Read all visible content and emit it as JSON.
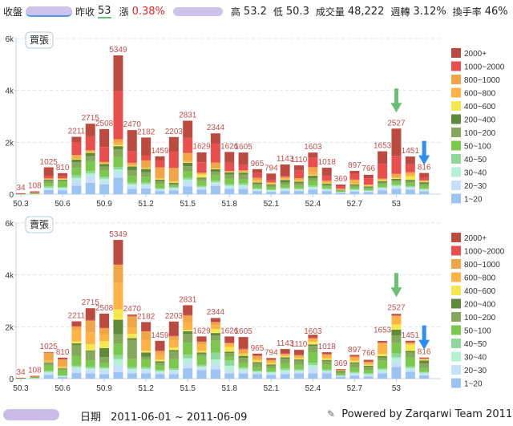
{
  "header": {
    "close_label": "收盤",
    "prev_close_label": "昨收",
    "prev_close": "53",
    "change_label": "漲",
    "change_pct": "0.38%",
    "high_label": "高",
    "high": "53.2",
    "low_label": "低",
    "low": "50.3",
    "volume_label": "成交量",
    "volume": "48,222",
    "weekly_turnover_label": "週轉",
    "weekly_turnover": "3.12%",
    "turnover_rate_label": "換手率",
    "turnover_rate": "46%"
  },
  "footer": {
    "date_label": "日期",
    "date_range": "2011-06-01 ~ 2011-06-09",
    "powered_by": "Powered by Zarqarwi Team 2011"
  },
  "colors": {
    "label_red": "#c0504d",
    "arrow_green": "#6bbf74",
    "arrow_blue": "#2f8ef0"
  },
  "chart_data": [
    {
      "type": "bar",
      "stacked": true,
      "title": "買張",
      "xlabel": "",
      "ylabel": "",
      "ylim": [
        0,
        6000
      ],
      "yticks": [
        "0",
        "2k",
        "4k",
        "6k"
      ],
      "ytick_values": [
        0,
        2000,
        4000,
        6000
      ],
      "grid": true,
      "legend_position": "right",
      "x": [
        50.3,
        50.4,
        50.5,
        50.6,
        50.7,
        50.8,
        50.9,
        51.0,
        51.1,
        51.2,
        51.3,
        51.4,
        51.5,
        51.6,
        51.7,
        51.8,
        51.9,
        52.0,
        52.1,
        52.2,
        52.3,
        52.4,
        52.5,
        52.6,
        52.7,
        52.8,
        52.9,
        53.0,
        53.1,
        53.2
      ],
      "xtick_labels": [
        "50.3",
        "50.6",
        "50.9",
        "51.2",
        "51.5",
        "51.8",
        "52.1",
        "52.4",
        "52.7",
        "53"
      ],
      "xtick_values": [
        50.3,
        50.6,
        50.9,
        51.2,
        51.5,
        51.8,
        52.1,
        52.4,
        52.7,
        53.0
      ],
      "totals": [
        34,
        108,
        1025,
        810,
        2211,
        2715,
        2508,
        5349,
        2470,
        2182,
        1459,
        2203,
        2831,
        1629,
        2344,
        1626,
        1605,
        965,
        794,
        1143,
        1110,
        1603,
        1018,
        369,
        897,
        766,
        1653,
        2527,
        1451,
        816
      ],
      "annotations": [
        {
          "type": "arrow-down",
          "color": "green",
          "at_x": 53.0
        },
        {
          "type": "arrow-down",
          "color": "blue",
          "at_x": 53.2
        }
      ],
      "series": [
        {
          "name": "1~20",
          "color": "#9dc3f2",
          "values": [
            2,
            10,
            160,
            150,
            330,
            440,
            380,
            640,
            200,
            220,
            120,
            150,
            300,
            180,
            320,
            210,
            200,
            120,
            90,
            120,
            120,
            170,
            120,
            50,
            100,
            80,
            150,
            200,
            170,
            110
          ]
        },
        {
          "name": "20~30",
          "color": "#c6e0fa",
          "values": [
            1,
            5,
            50,
            50,
            200,
            250,
            120,
            180,
            120,
            110,
            50,
            50,
            180,
            60,
            80,
            70,
            80,
            40,
            30,
            50,
            40,
            60,
            40,
            20,
            40,
            30,
            50,
            70,
            60,
            40
          ]
        },
        {
          "name": "30~40",
          "color": "#b5f2d5",
          "values": [
            1,
            3,
            40,
            40,
            100,
            100,
            100,
            130,
            60,
            60,
            30,
            40,
            80,
            40,
            60,
            50,
            70,
            30,
            30,
            40,
            30,
            50,
            30,
            10,
            30,
            20,
            40,
            50,
            40,
            30
          ]
        },
        {
          "name": "40~50",
          "color": "#8dd99a",
          "values": [
            1,
            3,
            50,
            40,
            100,
            100,
            80,
            100,
            60,
            60,
            30,
            40,
            70,
            40,
            60,
            50,
            70,
            30,
            30,
            40,
            30,
            50,
            30,
            10,
            30,
            20,
            40,
            50,
            40,
            40
          ]
        },
        {
          "name": "50~100",
          "color": "#7cc84e",
          "values": [
            3,
            10,
            120,
            200,
            280,
            380,
            230,
            380,
            250,
            220,
            150,
            50,
            250,
            180,
            200,
            220,
            150,
            100,
            80,
            100,
            100,
            170,
            80,
            40,
            80,
            60,
            100,
            100,
            100,
            100
          ]
        },
        {
          "name": "100~200",
          "color": "#86a85a",
          "values": [
            2,
            6,
            100,
            60,
            220,
            200,
            150,
            300,
            230,
            180,
            120,
            60,
            200,
            100,
            140,
            160,
            180,
            80,
            80,
            100,
            100,
            120,
            60,
            30,
            60,
            50,
            70,
            70,
            80,
            80
          ]
        },
        {
          "name": "200~400",
          "color": "#5f8a3a",
          "values": [
            2,
            5,
            50,
            20,
            100,
            120,
            100,
            120,
            150,
            120,
            60,
            50,
            130,
            40,
            100,
            80,
            80,
            50,
            40,
            100,
            60,
            90,
            50,
            20,
            40,
            40,
            50,
            50,
            60,
            60
          ]
        },
        {
          "name": "400~600",
          "color": "#f5e74f",
          "values": [
            1,
            4,
            10,
            20,
            20,
            20,
            20,
            40,
            20,
            20,
            30,
            40,
            20,
            120,
            20,
            10,
            20,
            20,
            20,
            20,
            20,
            30,
            10,
            10,
            20,
            20,
            20,
            30,
            140,
            20
          ]
        },
        {
          "name": "600~800",
          "color": "#ffb347",
          "values": [
            2,
            6,
            20,
            20,
            80,
            40,
            40,
            100,
            40,
            40,
            40,
            30,
            60,
            30,
            40,
            20,
            30,
            80,
            30,
            30,
            60,
            100,
            60,
            10,
            100,
            30,
            40,
            40,
            100,
            20
          ]
        },
        {
          "name": "800~1000",
          "color": "#efa548",
          "values": [
            1,
            4,
            10,
            10,
            80,
            40,
            20,
            130,
            80,
            270,
            400,
            500,
            300,
            40,
            200,
            20,
            40,
            80,
            30,
            60,
            60,
            200,
            40,
            10,
            60,
            20,
            40,
            120,
            60,
            30
          ]
        },
        {
          "name": "1000~2000",
          "color": "#e8504f",
          "values": [
            4,
            12,
            100,
            100,
            500,
            540,
            580,
            1850,
            440,
            200,
            270,
            630,
            580,
            400,
            730,
            320,
            200,
            180,
            90,
            40,
            300,
            360,
            180,
            99,
            230,
            246,
            570,
            700,
            300,
            120
          ]
        },
        {
          "name": "2000+",
          "color": "#bb4a41",
          "values": [
            14,
            40,
            325,
            100,
            201,
            485,
            688,
            1379,
            820,
            682,
            159,
            563,
            661,
            379,
            394,
            416,
            485,
            155,
            244,
            443,
            190,
            203,
            318,
            60,
            107,
            130,
            483,
            1047,
            301,
            166
          ]
        }
      ]
    },
    {
      "type": "bar",
      "stacked": true,
      "title": "賣張",
      "xlabel": "",
      "ylabel": "",
      "ylim": [
        0,
        6000
      ],
      "yticks": [
        "0",
        "2k",
        "4k",
        "6k"
      ],
      "ytick_values": [
        0,
        2000,
        4000,
        6000
      ],
      "grid": true,
      "legend_position": "right",
      "x": [
        50.3,
        50.4,
        50.5,
        50.6,
        50.7,
        50.8,
        50.9,
        51.0,
        51.1,
        51.2,
        51.3,
        51.4,
        51.5,
        51.6,
        51.7,
        51.8,
        51.9,
        52.0,
        52.1,
        52.2,
        52.3,
        52.4,
        52.5,
        52.6,
        52.7,
        52.8,
        52.9,
        53.0,
        53.1,
        53.2
      ],
      "xtick_labels": [
        "50.3",
        "50.6",
        "50.9",
        "51.2",
        "51.5",
        "51.8",
        "52.1",
        "52.4",
        "52.7",
        "53"
      ],
      "xtick_values": [
        50.3,
        50.6,
        50.9,
        51.2,
        51.5,
        51.8,
        52.1,
        52.4,
        52.7,
        53.0
      ],
      "totals": [
        34,
        108,
        1025,
        810,
        2211,
        2715,
        2508,
        5349,
        2470,
        2182,
        1459,
        2203,
        2831,
        1629,
        2344,
        1626,
        1605,
        965,
        794,
        1143,
        1110,
        1603,
        1018,
        369,
        897,
        766,
        1653,
        2527,
        1451,
        816
      ],
      "annotations": [
        {
          "type": "arrow-down",
          "color": "green",
          "at_x": 53.0
        },
        {
          "type": "arrow-down",
          "color": "blue",
          "at_x": 53.2
        }
      ],
      "series": [
        {
          "name": "1~20",
          "color": "#9dc3f2",
          "values": [
            4,
            10,
            150,
            60,
            220,
            200,
            170,
            250,
            200,
            200,
            180,
            170,
            400,
            330,
            360,
            200,
            200,
            170,
            150,
            170,
            200,
            200,
            200,
            70,
            120,
            90,
            200,
            450,
            260,
            130
          ]
        },
        {
          "name": "20~30",
          "color": "#c6e0fa",
          "values": [
            2,
            6,
            60,
            20,
            150,
            120,
            150,
            250,
            100,
            120,
            50,
            110,
            200,
            80,
            200,
            100,
            100,
            60,
            40,
            80,
            60,
            200,
            60,
            20,
            60,
            40,
            60,
            220,
            80,
            60
          ]
        },
        {
          "name": "30~40",
          "color": "#b5f2d5",
          "values": [
            2,
            6,
            50,
            20,
            80,
            80,
            80,
            250,
            80,
            60,
            60,
            60,
            180,
            60,
            180,
            200,
            80,
            40,
            50,
            80,
            60,
            120,
            50,
            20,
            40,
            40,
            90,
            150,
            80,
            40
          ]
        },
        {
          "name": "40~50",
          "color": "#8dd99a",
          "values": [
            2,
            6,
            40,
            20,
            50,
            60,
            50,
            160,
            70,
            60,
            40,
            60,
            150,
            60,
            260,
            200,
            60,
            30,
            40,
            60,
            40,
            90,
            40,
            20,
            40,
            40,
            40,
            150,
            60,
            30
          ]
        },
        {
          "name": "50~100",
          "color": "#7cc84e",
          "values": [
            10,
            20,
            200,
            200,
            380,
            250,
            150,
            450,
            320,
            300,
            180,
            350,
            450,
            350,
            460,
            150,
            180,
            150,
            120,
            200,
            180,
            410,
            180,
            70,
            170,
            130,
            300,
            400,
            330,
            150
          ]
        },
        {
          "name": "100~200",
          "color": "#86a85a",
          "values": [
            6,
            15,
            100,
            60,
            420,
            350,
            230,
            350,
            730,
            110,
            100,
            300,
            350,
            80,
            200,
            140,
            180,
            150,
            110,
            180,
            150,
            240,
            150,
            80,
            160,
            120,
            130,
            300,
            200,
            180
          ]
        },
        {
          "name": "200~400",
          "color": "#5f8a3a",
          "values": [
            3,
            10,
            30,
            20,
            60,
            30,
            350,
            560,
            60,
            160,
            60,
            50,
            100,
            50,
            100,
            50,
            80,
            40,
            40,
            50,
            50,
            60,
            40,
            30,
            40,
            40,
            50,
            220,
            60,
            110
          ]
        },
        {
          "name": "400~600",
          "color": "#f5e74f",
          "values": [
            1,
            4,
            20,
            20,
            80,
            240,
            270,
            400,
            170,
            60,
            60,
            100,
            50,
            60,
            150,
            180,
            50,
            60,
            40,
            40,
            40,
            100,
            60,
            10,
            60,
            40,
            80,
            200,
            240,
            30
          ]
        },
        {
          "name": "600~800",
          "color": "#ffb347",
          "values": [
            1,
            5,
            60,
            70,
            450,
            460,
            240,
            1030,
            250,
            430,
            180,
            300,
            300,
            260,
            160,
            120,
            50,
            70,
            90,
            60,
            60,
            90,
            100,
            10,
            100,
            60,
            400,
            300,
            50,
            30
          ]
        },
        {
          "name": "800~1000",
          "color": "#efa548",
          "values": [
            1,
            6,
            300,
            250,
            120,
            450,
            250,
            690,
            420,
            320,
            150,
            130,
            250,
            90,
            100,
            30,
            150,
            100,
            40,
            30,
            60,
            50,
            60,
            10,
            60,
            40,
            30,
            30,
            30,
            20
          ]
        },
        {
          "name": "1000~2000",
          "color": "#e8504f",
          "values": [
            1,
            4,
            5,
            20,
            20,
            20,
            20,
            20,
            20,
            20,
            20,
            20,
            20,
            20,
            20,
            20,
            20,
            20,
            20,
            20,
            20,
            20,
            20,
            10,
            20,
            20,
            30,
            20,
            20,
            10
          ]
        },
        {
          "name": "2000+",
          "color": "#bb4a41",
          "values": [
            1,
            16,
            10,
            50,
            181,
            455,
            548,
            939,
            50,
            342,
            379,
            553,
            381,
            189,
            148,
            236,
            455,
            75,
            54,
            173,
            190,
            113,
            58,
            19,
            47,
            66,
            43,
            57,
            51,
            26
          ]
        }
      ]
    }
  ]
}
